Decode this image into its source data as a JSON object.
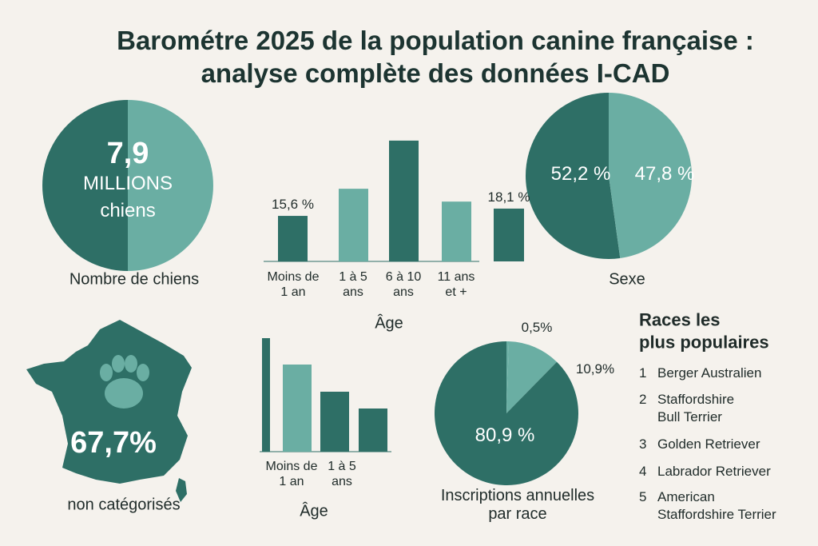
{
  "title": "Barométre 2025 de la population canine française : analyse complète des données I-CAD",
  "dog_count": {
    "value": "7,9",
    "unit": "MILLIONS",
    "noun": "chiens",
    "caption": "Nombre de chiens"
  },
  "uncategorized": {
    "value": "67,7%",
    "caption": "non catégorisés"
  },
  "chart_data": [
    {
      "type": "bar",
      "categories": [
        "Moins de 1 an",
        "1 à 5 ans",
        "6 à 10 ans",
        "11 ans et +",
        null
      ],
      "values": [
        15.6,
        24.9,
        41.4,
        20.5,
        18.1
      ],
      "value_labels": [
        "15,6 %",
        null,
        null,
        null,
        "18,1 %"
      ],
      "colors": [
        "#2e6f66",
        "#6aaea3",
        "#2e6f66",
        "#6aaea3",
        "#2e6f66"
      ],
      "xlabel": "Âge"
    },
    {
      "type": "pie",
      "title": "Sexe",
      "values": [
        52.2,
        47.8
      ],
      "value_labels": [
        "52,2 %",
        "47,8 %"
      ],
      "colors": [
        "#2e6f66",
        "#6aaea3"
      ]
    },
    {
      "type": "bar",
      "categories": [
        "Moins de 1 an",
        "1 à 5 ans",
        null,
        null
      ],
      "values": [
        142,
        109,
        75,
        54
      ],
      "colors": [
        "#2e6f66",
        "#6aaea3",
        "#2e6f66",
        "#2e6f66"
      ],
      "xlabel": "Âge"
    },
    {
      "type": "pie",
      "title": "Inscriptions annuelles par race",
      "values": [
        0.5,
        10.9,
        80.9
      ],
      "value_labels": [
        "0,5%",
        "10,9%",
        "80,9 %"
      ],
      "colors": [
        "#6aaea3",
        "#6aaea3",
        "#2e6f66"
      ]
    }
  ],
  "breeds": {
    "title": [
      "Races les",
      "plus populaires"
    ],
    "items": [
      {
        "rank": 1,
        "name": [
          "Berger Australien"
        ]
      },
      {
        "rank": 2,
        "name": [
          "Staffordshire",
          "Bull Terrier"
        ]
      },
      {
        "rank": 3,
        "name": [
          "Golden Retriever"
        ]
      },
      {
        "rank": 4,
        "name": [
          "Labrador Retriever"
        ]
      },
      {
        "rank": 5,
        "name": [
          "American",
          "Staffordshire Terrier"
        ]
      }
    ]
  }
}
